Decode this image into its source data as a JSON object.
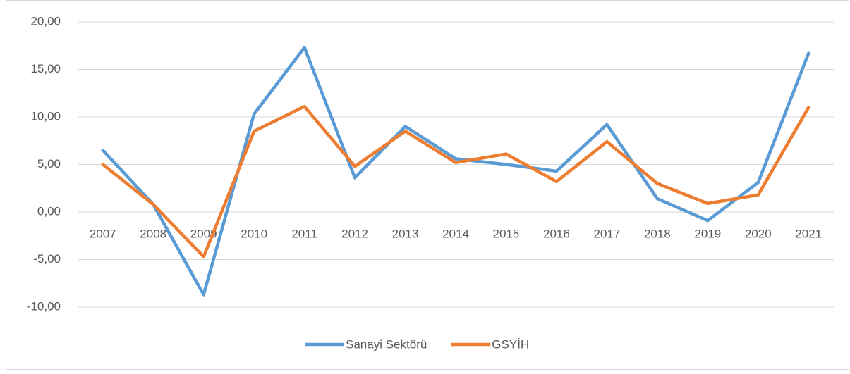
{
  "chart_data": {
    "type": "line",
    "categories": [
      "2007",
      "2008",
      "2009",
      "2010",
      "2011",
      "2012",
      "2013",
      "2014",
      "2015",
      "2016",
      "2017",
      "2018",
      "2019",
      "2020",
      "2021"
    ],
    "series": [
      {
        "name": "Sanayi Sektörü",
        "color": "#5b9bd5",
        "values": [
          6.5,
          0.8,
          -8.7,
          10.3,
          17.3,
          3.6,
          9.0,
          5.6,
          5.0,
          4.3,
          9.2,
          1.4,
          -0.9,
          3.1,
          16.7
        ]
      },
      {
        "name": "GSYİH",
        "color": "#ed7d31",
        "values": [
          5.0,
          0.8,
          -4.7,
          8.5,
          11.1,
          4.8,
          8.5,
          5.2,
          6.1,
          3.2,
          7.4,
          3.0,
          0.9,
          1.8,
          11.0
        ]
      }
    ],
    "ylim": [
      -10,
      20
    ],
    "yticks": [
      {
        "value": -10,
        "label": "-10,00"
      },
      {
        "value": -5,
        "label": "-5,00"
      },
      {
        "value": 0,
        "label": "0,00"
      },
      {
        "value": 5,
        "label": "5,00"
      },
      {
        "value": 10,
        "label": "10,00"
      },
      {
        "value": 15,
        "label": "15,00"
      },
      {
        "value": 20,
        "label": "20,00"
      }
    ],
    "grid": true,
    "legend": "bottom"
  }
}
